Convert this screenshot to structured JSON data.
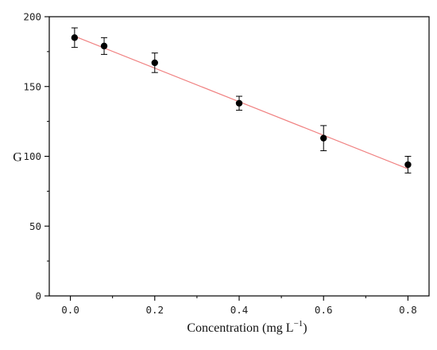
{
  "chart_data": {
    "type": "scatter",
    "title": "",
    "xlabel": "Concentration (mg L",
    "xlabel_superscript": "−1",
    "xlabel_close": ")",
    "ylabel": "G",
    "xlim": [
      -0.05,
      0.85
    ],
    "ylim": [
      0,
      200
    ],
    "xticks": [
      0.0,
      0.2,
      0.4,
      0.6,
      0.8
    ],
    "xtick_labels": [
      "0.0",
      "0.2",
      "0.4",
      "0.6",
      "0.8"
    ],
    "yticks": [
      0,
      50,
      100,
      150,
      200
    ],
    "ytick_labels": [
      "0",
      "50",
      "100",
      "150",
      "200"
    ],
    "grid": false,
    "series": [
      {
        "x": [
          0.01,
          0.08,
          0.2,
          0.4,
          0.6,
          0.8
        ],
        "y": [
          185,
          179,
          167,
          138,
          113,
          94
        ],
        "error": [
          7,
          6,
          7,
          5,
          9,
          6
        ]
      }
    ],
    "fit_line": {
      "x": [
        0.01,
        0.8
      ],
      "y": [
        186,
        91
      ]
    },
    "colors": {
      "points": "#000000",
      "fit_line": "#f08080",
      "axes": "#000000"
    }
  }
}
